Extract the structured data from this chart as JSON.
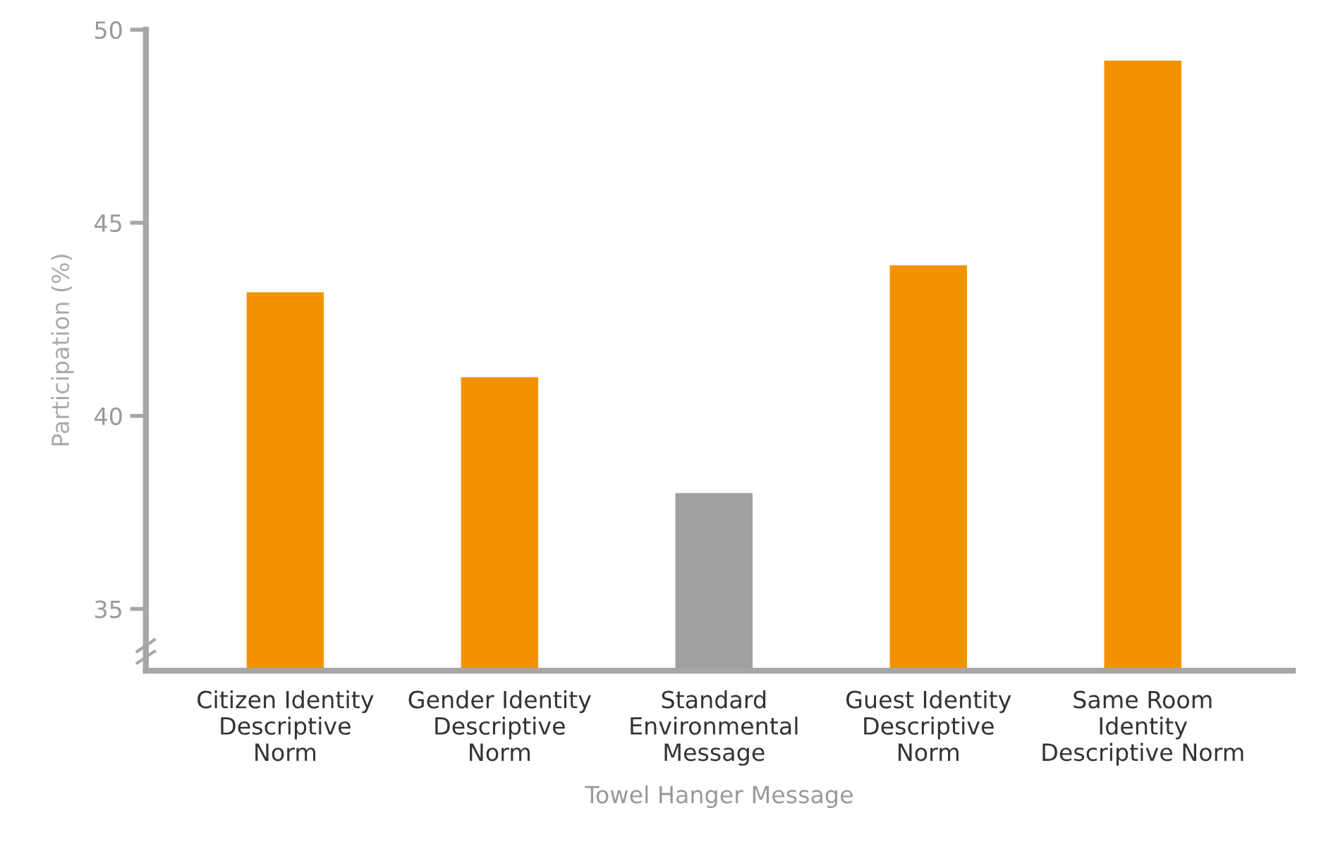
{
  "chart_data": {
    "type": "bar",
    "categories": [
      "Citizen Identity\nDescriptive\nNorm",
      "Gender Identity\nDescriptive\nNorm",
      "Standard\nEnvironmental\nMessage",
      "Guest Identity\nDescriptive\nNorm",
      "Same Room\nIdentity\nDescriptive Norm"
    ],
    "values": [
      43.2,
      41.0,
      38.0,
      43.9,
      49.2
    ],
    "colors": [
      "#f39200",
      "#f39200",
      "#a0a0a0",
      "#f39200",
      "#f39200"
    ],
    "xlabel": "Towel Hanger Message",
    "ylabel": "Participation (%)",
    "ylim": [
      33.4,
      50
    ],
    "yticks": [
      35,
      40,
      45,
      50
    ],
    "grid": false,
    "legend": false
  }
}
